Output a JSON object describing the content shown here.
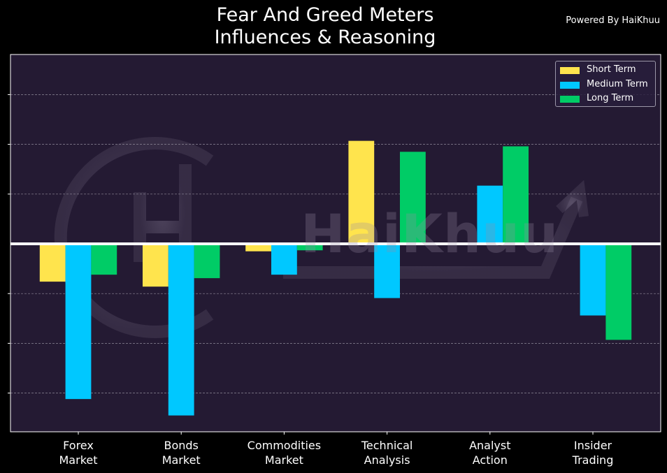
{
  "header": {
    "title_line1": "Fear And Greed Meters",
    "title_line2": "Influences & Reasoning",
    "powered_by": "Powered By HaiKhuu"
  },
  "watermark": {
    "text": "HaiKhuu"
  },
  "colors": {
    "background": "#000000",
    "plot_background": "#241a33",
    "short_term": "#ffe44d",
    "medium_term": "#00c8ff",
    "long_term": "#00cc66",
    "zero_line": "#ffffff"
  },
  "chart_data": {
    "type": "bar",
    "title": "Fear And Greed Meters Influences & Reasoning",
    "xlabel": "",
    "ylabel": "",
    "ylim": [
      -3.8,
      3.8
    ],
    "grid": true,
    "legend_position": "top-right",
    "categories": [
      [
        "Forex",
        "Market"
      ],
      [
        "Bonds",
        "Market"
      ],
      [
        "Commodities",
        "Market"
      ],
      [
        "Technical",
        "Analysis"
      ],
      [
        "Analyst",
        "Action"
      ],
      [
        "Insider",
        "Trading"
      ]
    ],
    "series": [
      {
        "name": "Short Term",
        "color": "#ffe44d",
        "values": [
          -0.76,
          -0.86,
          -0.15,
          2.07,
          0,
          0
        ]
      },
      {
        "name": "Medium Term",
        "color": "#00c8ff",
        "values": [
          -3.12,
          -3.45,
          -0.62,
          -1.09,
          1.17,
          -1.44
        ]
      },
      {
        "name": "Long Term",
        "color": "#00cc66",
        "values": [
          -0.62,
          -0.69,
          -0.13,
          1.85,
          1.96,
          -1.93
        ]
      }
    ]
  }
}
